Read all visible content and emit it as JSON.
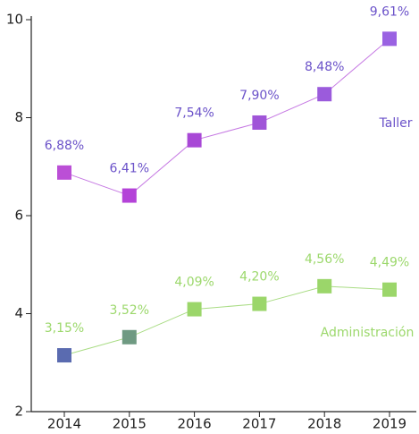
{
  "chart_data": {
    "type": "line",
    "categories": [
      "2014",
      "2015",
      "2016",
      "2017",
      "2018",
      "2019"
    ],
    "ylim": [
      2,
      10
    ],
    "yticks": [
      2,
      4,
      6,
      8,
      10
    ],
    "series": [
      {
        "name": "Taller",
        "color": "#c67ae3",
        "label_color": "#6b52c9",
        "colors": [
          "#bb4fd6",
          "#b443d8",
          "#a848d6",
          "#a055d8",
          "#9b5bdc",
          "#9a62e2"
        ],
        "values": [
          6.88,
          6.41,
          7.54,
          7.9,
          8.48,
          9.61
        ],
        "value_labels": [
          "6,88%",
          "6,41%",
          "7,54%",
          "7,90%",
          "8,48%",
          "9,61%"
        ]
      },
      {
        "name": "Administración",
        "color": "#a9dc84",
        "label_color": "#9cd86c",
        "colors": [
          "#5a6bb0",
          "#6f9a82",
          "#9bd66a",
          "#9bd66a",
          "#9bd66a",
          "#9bd66a"
        ],
        "values": [
          3.15,
          3.52,
          4.09,
          4.2,
          4.56,
          4.49
        ],
        "value_labels": [
          "3,15%",
          "3,52%",
          "4,09%",
          "4,20%",
          "4,56%",
          "4,49%"
        ]
      }
    ]
  }
}
